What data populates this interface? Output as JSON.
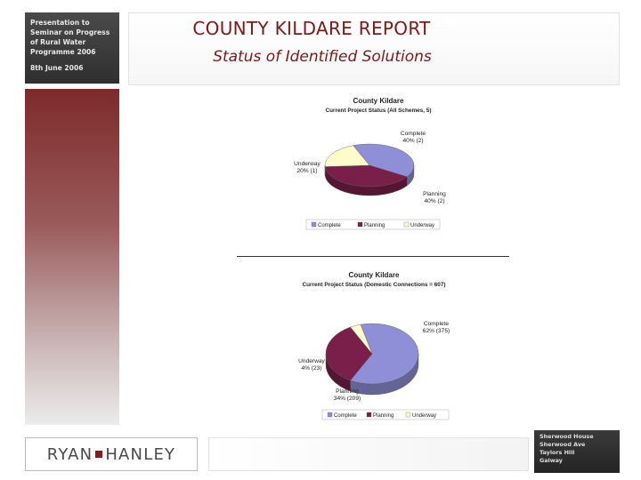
{
  "header": {
    "sidebar_lines": [
      "Presentation to",
      "Seminar on Progress",
      "of Rural Water",
      "Programme 2006"
    ],
    "date_text": "8th June 2006",
    "title": "COUNTY KILDARE REPORT",
    "subtitle": "Status of Identified Solutions"
  },
  "footer": {
    "logo_left": "RYAN",
    "logo_right": "HANLEY",
    "dark_lines": [
      "Sherwood House",
      "Sherwood Ave",
      "Taylors Hill",
      "Galway"
    ]
  },
  "chart_data": [
    {
      "type": "pie",
      "title": "County Kildare",
      "subtitle": "Current Project Status (All Schemes, 5)",
      "categories": [
        "Complete",
        "Planning",
        "Underway"
      ],
      "values": [
        2,
        2,
        1
      ],
      "labels": [
        "Complete\n40% (2)",
        "Planning\n40% (2)",
        "Underway\n20% (1)"
      ],
      "colors": [
        "#8f8fd8",
        "#7a1f4a",
        "#fffccc"
      ],
      "legend": "bottom",
      "legend_entries": [
        "Complete",
        "Planning",
        "Underway"
      ]
    },
    {
      "type": "pie",
      "title": "County Kildare",
      "subtitle": "Current Project Status (Domestic Connections = 607)",
      "categories": [
        "Complete",
        "Planning",
        "Underway"
      ],
      "values": [
        375,
        209,
        23
      ],
      "labels": [
        "Complete\n62% (375)",
        "Planning\n34% (209)",
        "Underway\n4% (23)"
      ],
      "colors": [
        "#8f8fd8",
        "#7a1f4a",
        "#fffccc"
      ],
      "legend": "bottom",
      "legend_entries": [
        "Complete",
        "Planning",
        "Underway"
      ]
    }
  ]
}
